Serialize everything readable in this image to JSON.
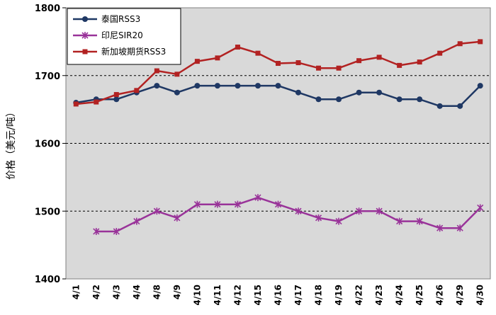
{
  "chart_data": {
    "type": "line",
    "title": "",
    "xlabel": "",
    "ylabel": "价格（美元/吨）",
    "ylim": [
      1400,
      1800
    ],
    "yticks": [
      1400,
      1500,
      1600,
      1700,
      1800
    ],
    "grid": "horizontal-dashed",
    "legend_position": "top-left",
    "categories": [
      "4/1",
      "4/2",
      "4/3",
      "4/4",
      "4/8",
      "4/9",
      "4/10",
      "4/11",
      "4/12",
      "4/15",
      "4/16",
      "4/17",
      "4/18",
      "4/19",
      "4/22",
      "4/23",
      "4/24",
      "4/25",
      "4/26",
      "4/29",
      "4/30"
    ],
    "series": [
      {
        "name": "泰国RSS3",
        "color": "#1f3864",
        "marker": "circle",
        "values": [
          1660,
          1665,
          1665,
          1675,
          1685,
          1675,
          1685,
          1685,
          1685,
          1685,
          1685,
          1675,
          1665,
          1665,
          1675,
          1675,
          1665,
          1665,
          1655,
          1655,
          1685
        ]
      },
      {
        "name": "印尼SIR20",
        "color": "#993399",
        "marker": "asterisk",
        "values": [
          null,
          1470,
          1470,
          1485,
          1500,
          1490,
          1510,
          1510,
          1510,
          1520,
          1510,
          1500,
          1490,
          1485,
          1500,
          1500,
          1485,
          1485,
          1475,
          1475,
          1505
        ]
      },
      {
        "name": "新加坡期货RSS3",
        "color": "#b22222",
        "marker": "square",
        "values": [
          1658,
          1661,
          1672,
          1678,
          1707,
          1702,
          1721,
          1726,
          1742,
          1733,
          1718,
          1719,
          1711,
          1711,
          1722,
          1727,
          1715,
          1720,
          1733,
          1747,
          1750
        ]
      }
    ]
  }
}
